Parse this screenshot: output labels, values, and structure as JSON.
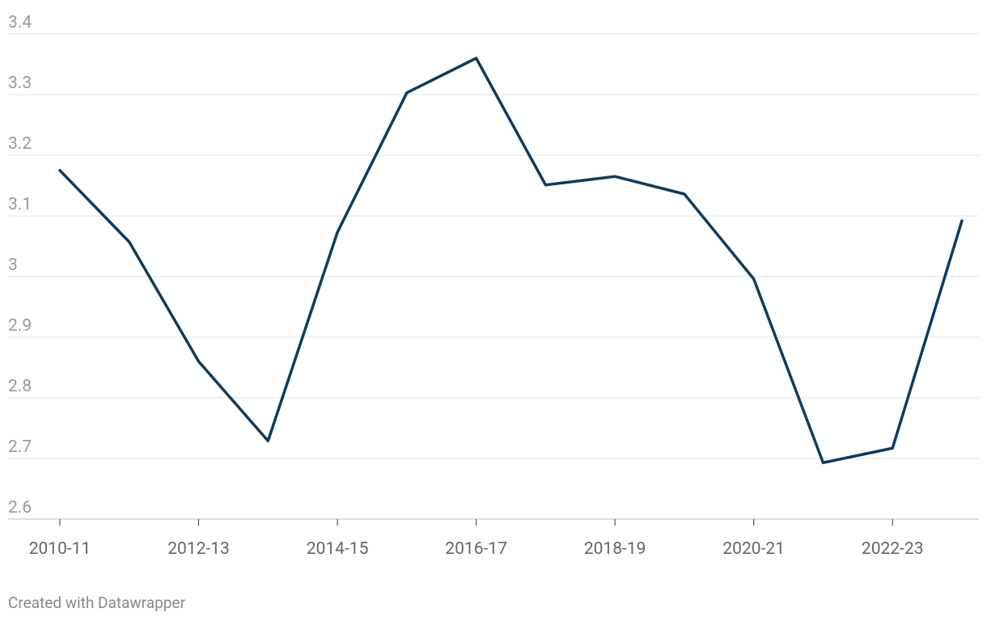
{
  "chart_data": {
    "type": "line",
    "categories": [
      "2010-11",
      null,
      "2012-13",
      null,
      "2014-15",
      null,
      "2016-17",
      null,
      "2018-19",
      null,
      "2020-21",
      null,
      "2022-23",
      null
    ],
    "series": [
      {
        "color": "#0f3b5f",
        "values": [
          3.175,
          3.057,
          2.86,
          2.729,
          3.073,
          3.303,
          3.36,
          3.151,
          3.165,
          3.136,
          2.996,
          2.693,
          2.717,
          3.092
        ]
      }
    ],
    "ylim": [
      2.6,
      3.4
    ],
    "yticks": [
      2.6,
      2.7,
      2.8,
      2.9,
      3,
      3.1,
      3.2,
      3.3,
      3.4
    ],
    "grid": true,
    "footer": "Created with Datawrapper"
  }
}
